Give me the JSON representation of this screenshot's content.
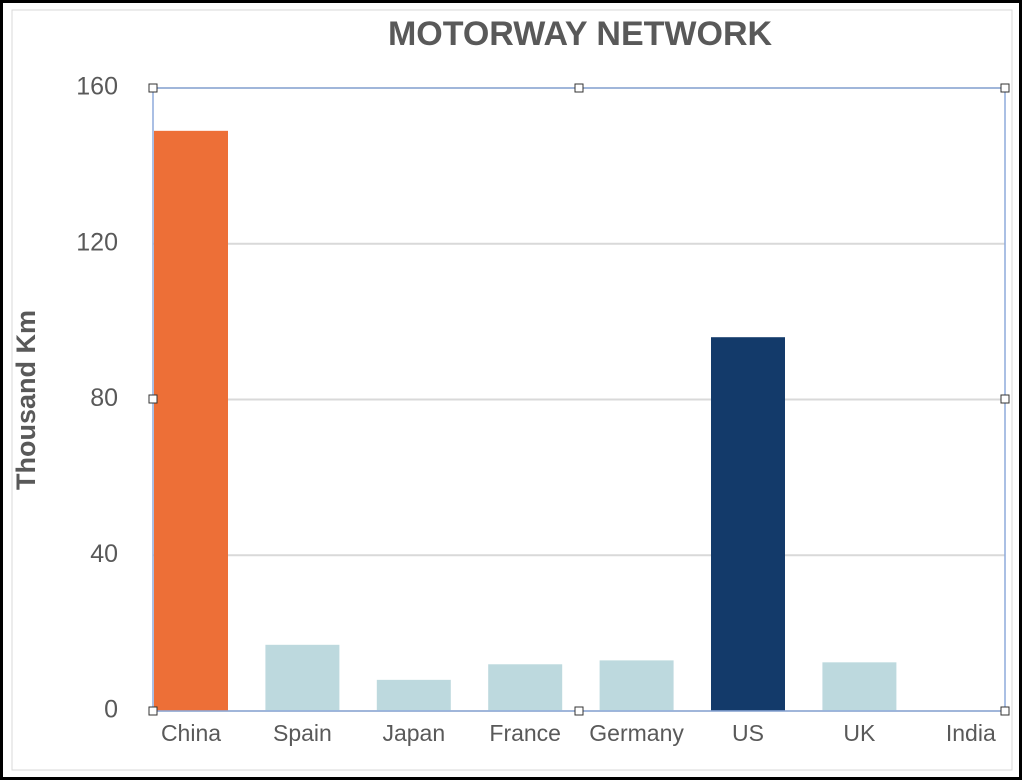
{
  "chart_data": {
    "type": "bar",
    "title": "MOTORWAY NETWORK",
    "y_label": "Thousand Km",
    "categories": [
      "China",
      "Spain",
      "Japan",
      "France",
      "Germany",
      "US",
      "UK",
      "India"
    ],
    "values": [
      149,
      17,
      8,
      12,
      13,
      96,
      12.5,
      0
    ],
    "colors": [
      "#ed6f37",
      "#bdd9de",
      "#bdd9de",
      "#bdd9de",
      "#bdd9de",
      "#133a6a",
      "#bdd9de",
      "#bdd9de"
    ],
    "ylim": [
      0,
      160
    ],
    "yticks": [
      0,
      40,
      80,
      120,
      160
    ],
    "grid": true
  }
}
